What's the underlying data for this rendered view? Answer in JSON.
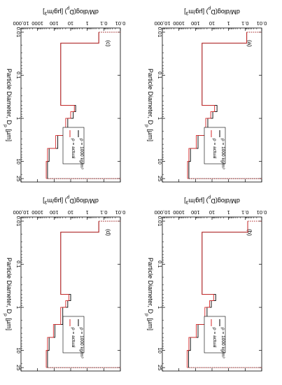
{
  "chart_data": [
    {
      "type": "line",
      "panel_label": "(a)",
      "xlabel_parts": [
        "Particle Diameter, D",
        "p",
        " [µm]"
      ],
      "ylabel_parts": [
        "dM/dlog(D",
        "p",
        ") [µg/m",
        "3",
        "]"
      ],
      "x_scale": "log",
      "y_scale": "log",
      "xlim": [
        0.008,
        30
      ],
      "ylim": [
        0.01,
        10000
      ],
      "x_ticks": [
        "0.01",
        "0.1",
        "1",
        "10",
        "25"
      ],
      "y_ticks": [
        "0.01",
        "0.1",
        "1",
        "10",
        "100",
        "1000",
        "10,000"
      ],
      "legend": {
        "location": "lower-right",
        "entries": [
          "ρ = 1000 kg/m³",
          "ρ = actual"
        ]
      },
      "bin_edges": [
        0.01,
        0.018,
        0.5,
        0.7,
        1.0,
        2.5,
        5,
        10,
        25
      ],
      "series": [
        {
          "name": "ρ = 1000 kg/m³",
          "color": "#000000",
          "values": [
            0.08,
            40,
            5,
            9,
            18,
            70,
            200,
            250
          ]
        },
        {
          "name": "ρ = actual",
          "color": "#d62728",
          "values": [
            0.08,
            40,
            7,
            12,
            24,
            90,
            250,
            300
          ]
        }
      ]
    },
    {
      "type": "line",
      "panel_label": "(b)",
      "xlabel_parts": [
        "Particle Diameter, D",
        "p",
        " [µm]"
      ],
      "ylabel_parts": [
        "dM/dlog(D",
        "p",
        ") [µg/m",
        "3",
        "]"
      ],
      "x_scale": "log",
      "y_scale": "log",
      "xlim": [
        0.008,
        30
      ],
      "ylim": [
        0.01,
        10000
      ],
      "x_ticks": [
        "0.01",
        "0.1",
        "1",
        "10",
        "25"
      ],
      "y_ticks": [
        "0.01",
        "0.1",
        "1",
        "10",
        "100",
        "1000",
        "10,000"
      ],
      "legend": {
        "location": "lower-right",
        "entries": [
          "ρ = 1000 kg/m³",
          "ρ = actual"
        ]
      },
      "bin_edges": [
        0.01,
        0.018,
        0.5,
        0.7,
        1.0,
        2.5,
        5,
        10,
        25
      ],
      "series": [
        {
          "name": "ρ = 1000 kg/m³",
          "color": "#000000",
          "values": [
            0.07,
            40,
            6,
            11,
            20,
            70,
            200,
            260
          ]
        },
        {
          "name": "ρ = actual",
          "color": "#d62728",
          "values": [
            0.07,
            40,
            8,
            14,
            27,
            90,
            250,
            320
          ]
        }
      ]
    },
    {
      "type": "line",
      "panel_label": "(c)",
      "xlabel_parts": [
        "Particle Diameter, D",
        "p",
        " [µm]"
      ],
      "ylabel_parts": [
        "dM/dlog(D",
        "p",
        ") [µg/m",
        "3",
        "]"
      ],
      "x_scale": "log",
      "y_scale": "log",
      "xlim": [
        0.008,
        30
      ],
      "ylim": [
        0.01,
        10000
      ],
      "x_ticks": [
        "0.01",
        "0.1",
        "1",
        "10",
        "25"
      ],
      "y_ticks": [
        "0.01",
        "0.1",
        "1",
        "10",
        "100",
        "1000",
        "10,000"
      ],
      "legend": {
        "location": "lower-right",
        "entries": [
          "ρ = 1000 kg/m³",
          "ρ = actual"
        ]
      },
      "bin_edges": [
        0.01,
        0.018,
        0.5,
        0.7,
        1.0,
        2.5,
        5,
        10,
        25
      ],
      "series": [
        {
          "name": "ρ = 1000 kg/m³",
          "color": "#000000",
          "values": [
            0.2,
            40,
            5,
            7,
            15,
            60,
            200,
            250
          ]
        },
        {
          "name": "ρ = actual",
          "color": "#d62728",
          "values": [
            0.2,
            40,
            6,
            10,
            20,
            80,
            250,
            300
          ]
        }
      ]
    },
    {
      "type": "line",
      "panel_label": "(d)",
      "xlabel_parts": [
        "Particle Diameter, D",
        "p",
        " [µm]"
      ],
      "ylabel_parts": [
        "dM/dlog(D",
        "p",
        ") [µg/m",
        "3",
        "]"
      ],
      "x_scale": "log",
      "y_scale": "log",
      "xlim": [
        0.008,
        30
      ],
      "ylim": [
        0.01,
        10000
      ],
      "x_ticks": [
        "0.01",
        "0.1",
        "1",
        "10",
        "25"
      ],
      "y_ticks": [
        "0.01",
        "0.1",
        "1",
        "10",
        "100",
        "1000",
        "10,000"
      ],
      "legend": {
        "location": "lower-right",
        "entries": [
          "ρ = 1000 kg/m³",
          "ρ = actual"
        ]
      },
      "bin_edges": [
        0.01,
        0.018,
        0.5,
        0.7,
        1.0,
        2.5,
        5,
        10,
        25
      ],
      "series": [
        {
          "name": "ρ = 1000 kg/m³",
          "color": "#000000",
          "values": [
            0.2,
            40,
            10,
            15,
            30,
            90,
            200,
            250
          ]
        },
        {
          "name": "ρ = actual",
          "color": "#d62728",
          "values": [
            0.2,
            40,
            13,
            20,
            40,
            110,
            250,
            300
          ]
        }
      ]
    }
  ]
}
